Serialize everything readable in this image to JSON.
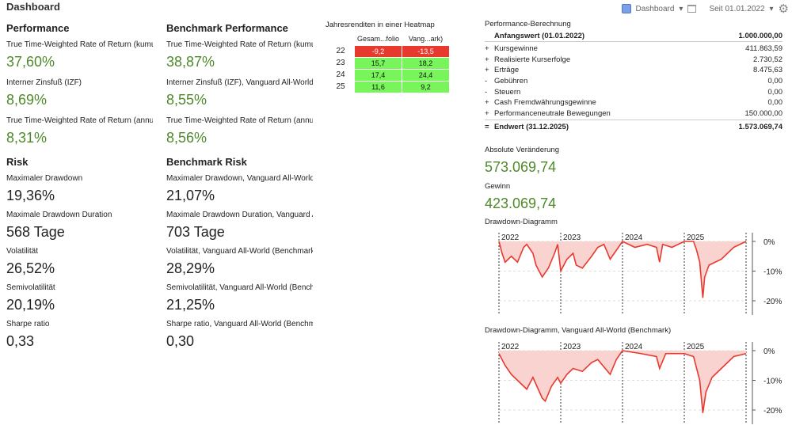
{
  "header": {
    "title": "Dashboard",
    "view_label": "Dashboard",
    "period_label": "Seit 01.01.2022"
  },
  "performance": {
    "title": "Performance",
    "items": [
      {
        "label": "True Time-Weighted Rate of Return (kumuliert)",
        "value": "37,60%"
      },
      {
        "label": "Interner Zinsfuß (IZF)",
        "value": "8,69%"
      },
      {
        "label": "True Time-Weighted Rate of Return (annualisiert)",
        "value": "8,31%"
      }
    ]
  },
  "benchmark_performance": {
    "title": "Benchmark Performance",
    "items": [
      {
        "label": "True Time-Weighted Rate of Return (kumuliert), Vanguard All-World (Benchmark)",
        "value": "38,87%"
      },
      {
        "label": "Interner Zinsfuß (IZF), Vanguard All-World (Benchmark)",
        "value": "8,55%"
      },
      {
        "label": "True Time-Weighted Rate of Return (annualisiert), Vanguard All-World (Benchmark)",
        "value": "8,56%"
      }
    ]
  },
  "risk": {
    "title": "Risk",
    "items": [
      {
        "label": "Maximaler Drawdown",
        "value": "19,36%"
      },
      {
        "label": "Maximale Drawdown Duration",
        "value": "568 Tage"
      },
      {
        "label": "Volatilität",
        "value": "26,52%"
      },
      {
        "label": "Semivolatilität",
        "value": "20,19%"
      },
      {
        "label": "Sharpe ratio",
        "value": "0,33"
      }
    ]
  },
  "benchmark_risk": {
    "title": "Benchmark Risk",
    "items": [
      {
        "label": "Maximaler Drawdown, Vanguard All-World (Benchmark)",
        "value": "21,07%"
      },
      {
        "label": "Maximale Drawdown Duration, Vanguard All-World (Benchmark)",
        "value": "703 Tage"
      },
      {
        "label": "Volatilität, Vanguard All-World (Benchmark)",
        "value": "28,29%"
      },
      {
        "label": "Semivolatilität, Vanguard All-World (Benchmark)",
        "value": "21,25%"
      },
      {
        "label": "Sharpe ratio, Vanguard All-World (Benchmark)",
        "value": "0,30"
      }
    ]
  },
  "heatmap": {
    "title": "Jahresrenditen in einer Heatmap",
    "columns": [
      "Gesam...folio",
      "Vang...ark)"
    ],
    "rows": [
      {
        "year": "22",
        "values": [
          "-9,2",
          "-13,5"
        ],
        "color": "#e8392f"
      },
      {
        "year": "23",
        "values": [
          "15,7",
          "18,2"
        ],
        "color": "#77f55a"
      },
      {
        "year": "24",
        "values": [
          "17,4",
          "24,4"
        ],
        "color": "#77f55a"
      },
      {
        "year": "25",
        "values": [
          "11,6",
          "9,2"
        ],
        "color": "#77f55a"
      }
    ]
  },
  "calc": {
    "title": "Performance-Berechnung",
    "start": {
      "label": "Anfangswert (01.01.2022)",
      "value": "1.000.000,00"
    },
    "rows": [
      {
        "sign": "+",
        "label": "Kursgewinne",
        "value": "411.863,59"
      },
      {
        "sign": "+",
        "label": "Realisierte Kurserfolge",
        "value": "2.730,52"
      },
      {
        "sign": "+",
        "label": "Erträge",
        "value": "8.475,63"
      },
      {
        "sign": "-",
        "label": "Gebühren",
        "value": "0,00"
      },
      {
        "sign": "-",
        "label": "Steuern",
        "value": "0,00"
      },
      {
        "sign": "+",
        "label": "Cash Fremdwährungsgewinne",
        "value": "0,00"
      },
      {
        "sign": "+",
        "label": "Performanceneutrale Bewegungen",
        "value": "150.000,00"
      }
    ],
    "end": {
      "sign": "=",
      "label": "Endwert (31.12.2025)",
      "value": "1.573.069,74"
    }
  },
  "absolute": {
    "label": "Absolute Veränderung",
    "value": "573.069,74"
  },
  "gain": {
    "label": "Gewinn",
    "value": "423.069,74"
  },
  "chart_data": [
    {
      "type": "area",
      "title": "Drawdown-Diagramm",
      "x_ticks": [
        "2022",
        "2023",
        "2024",
        "2025"
      ],
      "y_ticks": [
        "0%",
        "-10%",
        "-20%"
      ],
      "ylim": [
        -22,
        2
      ],
      "color": "#e8392f",
      "x": [
        2022.0,
        2022.05,
        2022.1,
        2022.2,
        2022.3,
        2022.4,
        2022.45,
        2022.55,
        2022.6,
        2022.7,
        2022.8,
        2022.9,
        2022.95,
        2023.0,
        2023.05,
        2023.1,
        2023.2,
        2023.25,
        2023.35,
        2023.5,
        2023.6,
        2023.7,
        2023.8,
        2023.9,
        2024.0,
        2024.2,
        2024.4,
        2024.55,
        2024.6,
        2024.65,
        2024.8,
        2025.0,
        2025.15,
        2025.2,
        2025.25,
        2025.3,
        2025.33,
        2025.4,
        2025.6,
        2025.8,
        2026.0
      ],
      "y": [
        0,
        -4,
        -7,
        -5,
        -7,
        -2,
        -1,
        -4,
        -8,
        -12,
        -9,
        -4,
        -1,
        -10,
        -8,
        -6,
        -4,
        -8,
        -9,
        -5,
        -2,
        -1,
        -6,
        -3,
        0,
        -2,
        -1,
        -2,
        -7,
        -1,
        -2,
        0,
        0,
        -3,
        -7,
        -19,
        -12,
        -8,
        -6,
        -2,
        0
      ]
    },
    {
      "type": "area",
      "title": "Drawdown-Diagramm, Vanguard All-World (Benchmark)",
      "x_ticks": [
        "2022",
        "2023",
        "2024",
        "2025"
      ],
      "y_ticks": [
        "0%",
        "-10%",
        "-20%"
      ],
      "ylim": [
        -22,
        2
      ],
      "color": "#e8392f",
      "x": [
        2022.0,
        2022.1,
        2022.2,
        2022.3,
        2022.45,
        2022.55,
        2022.7,
        2022.75,
        2022.85,
        2022.95,
        2023.0,
        2023.1,
        2023.2,
        2023.35,
        2023.5,
        2023.6,
        2023.8,
        2023.9,
        2024.0,
        2024.3,
        2024.55,
        2024.6,
        2024.7,
        2025.0,
        2025.15,
        2025.25,
        2025.3,
        2025.35,
        2025.45,
        2025.6,
        2025.8,
        2026.0
      ],
      "y": [
        -1,
        -5,
        -8,
        -10,
        -13,
        -9,
        -16,
        -17,
        -12,
        -9,
        -11,
        -8,
        -6,
        -7,
        -4,
        -3,
        -8,
        -3,
        0,
        -1,
        -2,
        -6,
        -1,
        -1,
        -2,
        -10,
        -21,
        -14,
        -9,
        -6,
        -2,
        -1
      ]
    }
  ]
}
